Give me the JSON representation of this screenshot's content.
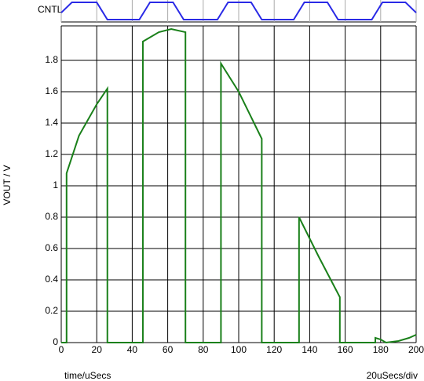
{
  "chart_data": [
    {
      "type": "line",
      "ylabel": "CNTL",
      "color": "#2a2ae6",
      "x": [
        0,
        6,
        20,
        26,
        44,
        50,
        63,
        69,
        88,
        94,
        107,
        113,
        131,
        137,
        150,
        156,
        175,
        181,
        194,
        200
      ],
      "values": [
        0.4,
        1,
        1,
        0,
        0,
        1,
        1,
        0,
        0,
        1,
        1,
        0,
        0,
        1,
        1,
        0,
        0,
        1,
        1,
        0.4
      ],
      "xlim": [
        0,
        200
      ],
      "ylim": [
        0,
        1
      ]
    },
    {
      "type": "line",
      "ylabel": "VOUT / V",
      "xlabel": "time/uSecs",
      "annotation": "20uSecs/div",
      "color": "#1a801a",
      "x": [
        0,
        3,
        3,
        10,
        20,
        26,
        26,
        46,
        46,
        55,
        62,
        70,
        70,
        90,
        90,
        100,
        113,
        113,
        134,
        134,
        145,
        157,
        157,
        177,
        177,
        180,
        183,
        190,
        196,
        200
      ],
      "values": [
        0,
        0,
        1.08,
        1.32,
        1.52,
        1.62,
        0,
        0,
        1.92,
        1.98,
        2.0,
        1.98,
        0,
        0,
        1.78,
        1.6,
        1.3,
        0,
        0,
        0.8,
        0.55,
        0.29,
        0,
        0,
        0.03,
        0.02,
        0,
        0.01,
        0.03,
        0.05
      ],
      "xlim": [
        0,
        200
      ],
      "ylim": [
        0,
        2.0
      ],
      "xticks": [
        0,
        20,
        40,
        60,
        80,
        100,
        120,
        140,
        160,
        180,
        200
      ],
      "yticks": [
        0,
        0.2,
        0.4,
        0.6,
        0.8,
        1,
        1.2,
        1.4,
        1.6,
        1.8
      ],
      "grid": true
    }
  ]
}
